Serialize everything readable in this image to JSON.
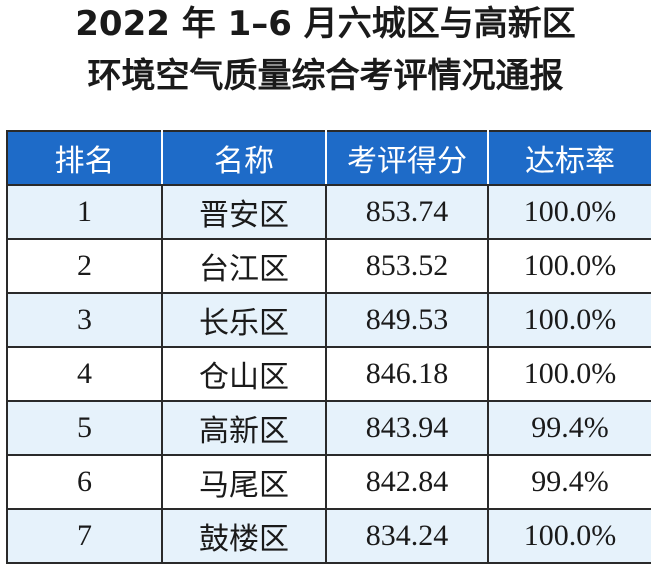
{
  "title": {
    "line1": "2022 年 1–6 月六城区与高新区",
    "line2": "环境空气质量综合考评情况通报"
  },
  "table": {
    "headers": [
      "排名",
      "名称",
      "考评得分",
      "达标率"
    ],
    "rows": [
      {
        "rank": "1",
        "name": "晋安区",
        "score": "853.74",
        "rate": "100.0%"
      },
      {
        "rank": "2",
        "name": "台江区",
        "score": "853.52",
        "rate": "100.0%"
      },
      {
        "rank": "3",
        "name": "长乐区",
        "score": "849.53",
        "rate": "100.0%"
      },
      {
        "rank": "4",
        "name": "仓山区",
        "score": "846.18",
        "rate": "100.0%"
      },
      {
        "rank": "5",
        "name": "高新区",
        "score": "843.94",
        "rate": "99.4%"
      },
      {
        "rank": "6",
        "name": "马尾区",
        "score": "842.84",
        "rate": "99.4%"
      },
      {
        "rank": "7",
        "name": "鼓楼区",
        "score": "834.24",
        "rate": "100.0%"
      }
    ]
  },
  "colors": {
    "header_bg": "#1e6bc8",
    "stripe_bg": "#e6f2fb"
  }
}
